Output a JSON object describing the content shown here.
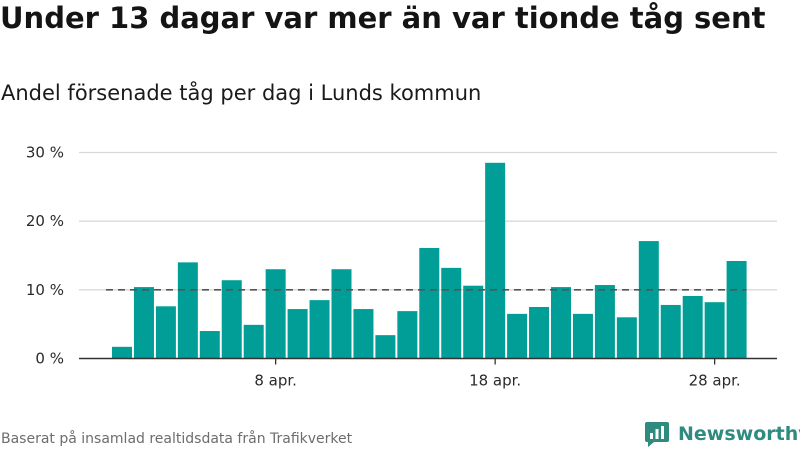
{
  "title": "Under 13 dagar var mer än var tionde tåg sent",
  "subtitle": "Andel försenade tåg per dag i Lunds kommun",
  "source": "Baserat på insamlad realtidsdata från Trafikverket",
  "logo": {
    "text": "Newsworthy",
    "icon": "newsworthy-logo-icon"
  },
  "colors": {
    "bar": "#009e96",
    "grid": "#d9d9d9",
    "baseline": "#333333",
    "reference": "#555555"
  },
  "chart_data": {
    "type": "bar",
    "title": "Under 13 dagar var mer än var tionde tåg sent",
    "subtitle": "Andel försenade tåg per dag i Lunds kommun",
    "xlabel": "",
    "ylabel": "",
    "unit": "%",
    "ylim": [
      0,
      30
    ],
    "yticks": [
      0,
      10,
      20,
      30
    ],
    "ytick_labels": [
      "0 %",
      "10 %",
      "20 %",
      "30 %"
    ],
    "grid": true,
    "reference_line": {
      "value": 10,
      "style": "dashed"
    },
    "categories": [
      "1 apr.",
      "2 apr.",
      "3 apr.",
      "4 apr.",
      "5 apr.",
      "6 apr.",
      "7 apr.",
      "8 apr.",
      "9 apr.",
      "10 apr.",
      "11 apr.",
      "12 apr.",
      "13 apr.",
      "14 apr.",
      "15 apr.",
      "16 apr.",
      "17 apr.",
      "18 apr.",
      "19 apr.",
      "20 apr.",
      "21 apr.",
      "22 apr.",
      "23 apr.",
      "24 apr.",
      "25 apr.",
      "26 apr.",
      "27 apr.",
      "28 apr.",
      "29 apr."
    ],
    "values": [
      1.7,
      10.4,
      7.6,
      14.0,
      4.0,
      11.4,
      4.9,
      13.0,
      7.2,
      8.5,
      13.0,
      7.2,
      3.4,
      6.9,
      16.1,
      13.2,
      10.6,
      28.5,
      6.5,
      7.5,
      10.4,
      6.5,
      10.7,
      6.0,
      17.1,
      7.8,
      9.1,
      8.2,
      14.2
    ],
    "x_tick_labels": [
      {
        "category": "8 apr.",
        "label": "8 apr."
      },
      {
        "category": "18 apr.",
        "label": "18 apr."
      },
      {
        "category": "28 apr.",
        "label": "28 apr."
      }
    ]
  }
}
